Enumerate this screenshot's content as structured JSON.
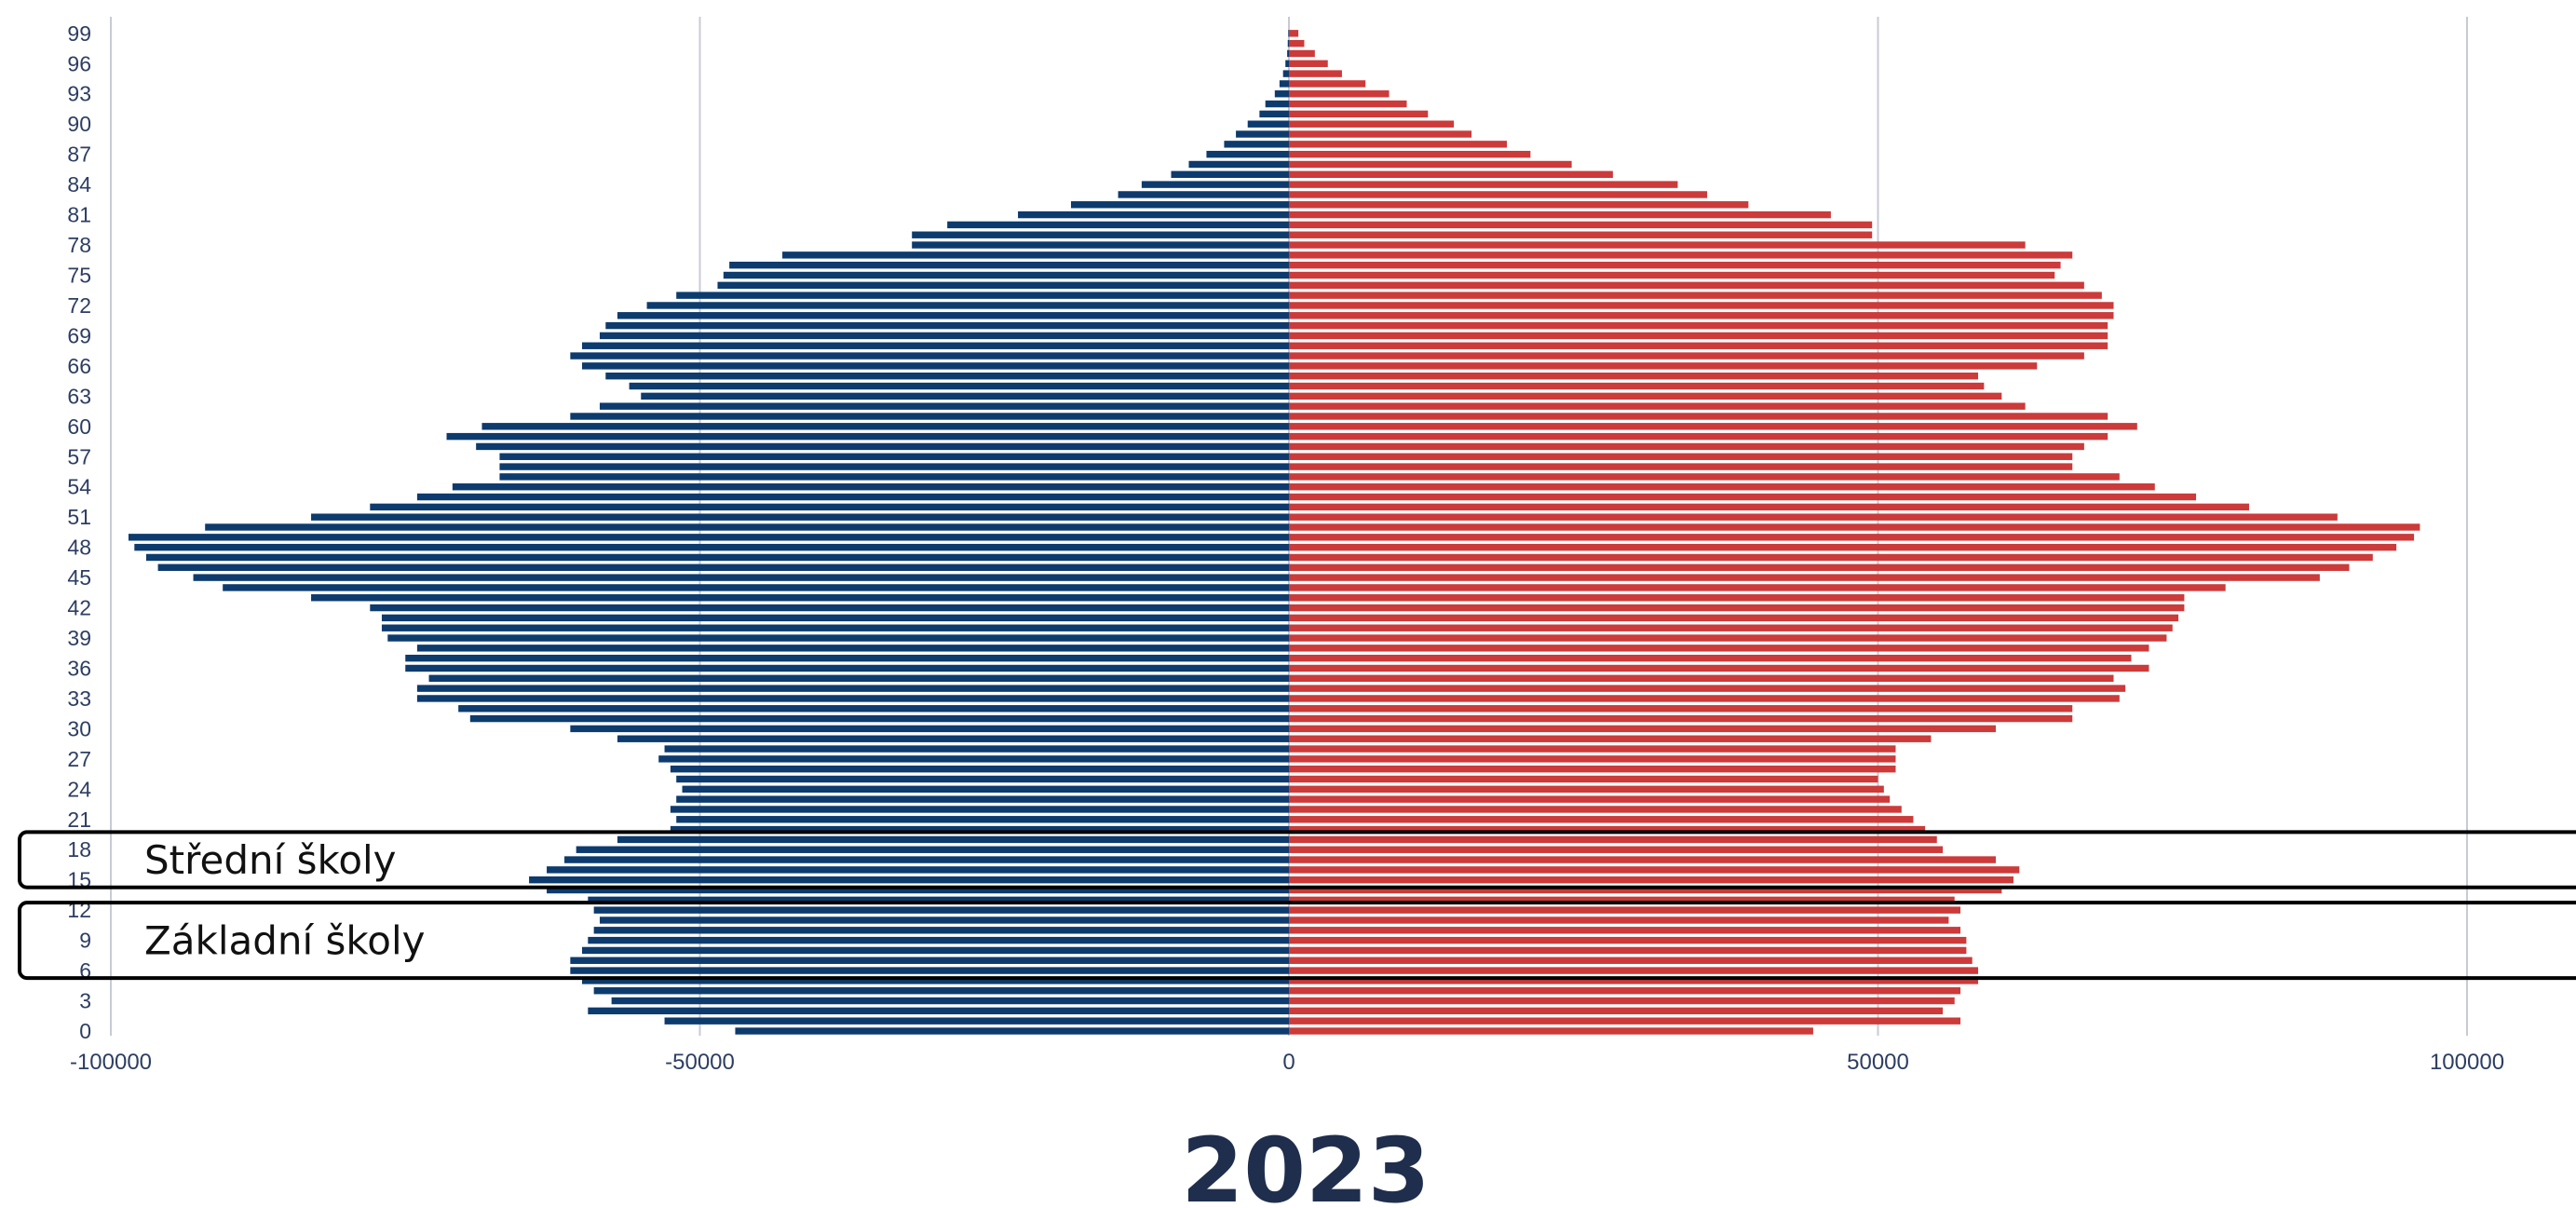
{
  "chart_data": {
    "type": "bar",
    "orientation": "horizontal",
    "title": "2023",
    "xlim": [
      -100000,
      100000
    ],
    "xticks": [
      -100000,
      -50000,
      0,
      50000,
      100000
    ],
    "xtick_labels": [
      "-100000",
      "-50000",
      "0",
      "50000",
      "100000"
    ],
    "ytick_labels": [
      "0",
      "3",
      "6",
      "9",
      "12",
      "15",
      "18",
      "21",
      "24",
      "27",
      "30",
      "33",
      "36",
      "39",
      "42",
      "45",
      "48",
      "51",
      "54",
      "57",
      "60",
      "63",
      "66",
      "69",
      "72",
      "75",
      "78",
      "81",
      "84",
      "87",
      "90",
      "93",
      "96",
      "99"
    ],
    "grid": "vertical",
    "categories": [
      0,
      1,
      2,
      3,
      4,
      5,
      6,
      7,
      8,
      9,
      10,
      11,
      12,
      13,
      14,
      15,
      16,
      17,
      18,
      19,
      20,
      21,
      22,
      23,
      24,
      25,
      26,
      27,
      28,
      29,
      30,
      31,
      32,
      33,
      34,
      35,
      36,
      37,
      38,
      39,
      40,
      41,
      42,
      43,
      44,
      45,
      46,
      47,
      48,
      49,
      50,
      51,
      52,
      53,
      54,
      55,
      56,
      57,
      58,
      59,
      60,
      61,
      62,
      63,
      64,
      65,
      66,
      67,
      68,
      69,
      70,
      71,
      72,
      73,
      74,
      75,
      76,
      77,
      78,
      79,
      80,
      81,
      82,
      83,
      84,
      85,
      86,
      87,
      88,
      89,
      90,
      91,
      92,
      93,
      94,
      95,
      96,
      97,
      98,
      99
    ],
    "series": [
      {
        "color": "#0d3b6e",
        "values": [
          -47000,
          -53000,
          -59500,
          -57500,
          -59000,
          -60000,
          -61000,
          -61000,
          -60000,
          -59500,
          -59000,
          -58500,
          -59000,
          -59500,
          -63000,
          -64500,
          -63000,
          -61500,
          -60500,
          -57000,
          -52500,
          -52000,
          -52500,
          -52000,
          -51500,
          -52000,
          -52500,
          -53500,
          -53000,
          -57000,
          -61000,
          -69500,
          -70500,
          -74000,
          -74000,
          -73000,
          -75000,
          -75000,
          -74000,
          -76500,
          -77000,
          -77000,
          -78000,
          -83000,
          -90500,
          -93000,
          -96000,
          -97000,
          -98000,
          -98500,
          -92000,
          -83000,
          -78000,
          -74000,
          -71000,
          -67000,
          -67000,
          -67000,
          -69000,
          -71500,
          -68500,
          -61000,
          -58500,
          -55000,
          -56000,
          -58000,
          -60000,
          -61000,
          -60000,
          -58500,
          -58000,
          -57000,
          -54500,
          -52000,
          -48500,
          -48000,
          -47500,
          -43000,
          -32000,
          -32000,
          -29000,
          -23000,
          -18500,
          -14500,
          -12500,
          -10000,
          -8500,
          -7000,
          -5500,
          -4500,
          -3500,
          -2500,
          -2000,
          -1200,
          -800,
          -500,
          -300,
          -150,
          -100,
          -50
        ]
      },
      {
        "color": "#cc3a3a",
        "values": [
          44500,
          57000,
          55500,
          56500,
          57000,
          58500,
          58500,
          58000,
          57500,
          57500,
          57000,
          56000,
          57000,
          56500,
          60500,
          61500,
          62000,
          60000,
          55500,
          55000,
          54000,
          53000,
          52000,
          51000,
          50500,
          50000,
          51500,
          51500,
          51500,
          54500,
          60000,
          66500,
          66500,
          70500,
          71000,
          70000,
          73000,
          71500,
          73000,
          74500,
          75000,
          75500,
          76000,
          76000,
          79500,
          87500,
          90000,
          92000,
          94000,
          95500,
          96000,
          89000,
          81500,
          77000,
          73500,
          70500,
          66500,
          66500,
          67500,
          69500,
          72000,
          69500,
          62500,
          60500,
          59000,
          58500,
          63500,
          67500,
          69500,
          69500,
          69500,
          70000,
          70000,
          69000,
          67500,
          65000,
          65500,
          66500,
          62500,
          49500,
          49500,
          46000,
          39000,
          35500,
          33000,
          27500,
          24000,
          20500,
          18500,
          15500,
          14000,
          11800,
          10000,
          8500,
          6500,
          4500,
          3300,
          2200,
          1300,
          800
        ]
      }
    ],
    "annotations": [
      {
        "label": "Střední školy",
        "age_from": 15,
        "age_to": 19
      },
      {
        "label": "Základní školy",
        "age_from": 6,
        "age_to": 12
      }
    ]
  }
}
